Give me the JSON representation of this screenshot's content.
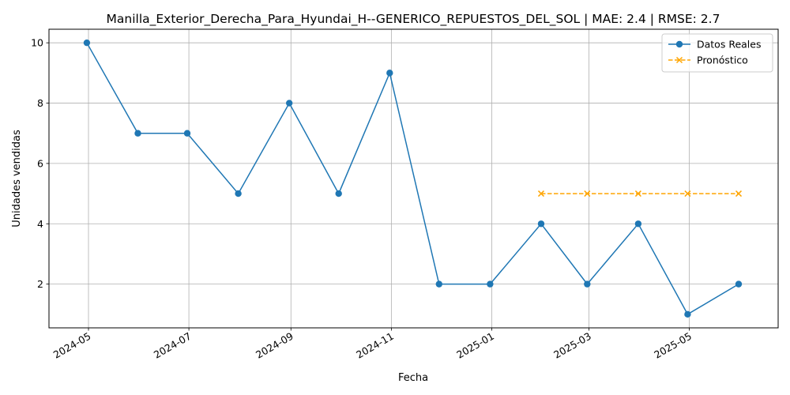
{
  "chart_data": {
    "type": "line",
    "title": "Manilla_Exterior_Derecha_Para_Hyundai_H--GENERICO_REPUESTOS_DEL_SOL | MAE: 2.4 | RMSE: 2.7",
    "xlabel": "Fecha",
    "ylabel": "Unidades vendidas",
    "xlim": [
      "2024-04-07",
      "2025-06-24"
    ],
    "ylim": [
      0.55,
      10.45
    ],
    "x_ticks": [
      "2024-05",
      "2024-07",
      "2024-09",
      "2024-11",
      "2025-01",
      "2025-03",
      "2025-05"
    ],
    "y_ticks": [
      2,
      4,
      6,
      8,
      10
    ],
    "grid": true,
    "legend_position": "top-right",
    "series": [
      {
        "name": "Datos Reales",
        "color": "#1f77b4",
        "line_style": "solid",
        "marker": "circle",
        "x": [
          "2024-04-30",
          "2024-05-31",
          "2024-06-30",
          "2024-07-31",
          "2024-08-31",
          "2024-09-30",
          "2024-10-31",
          "2024-11-30",
          "2024-12-31",
          "2025-01-31",
          "2025-02-28",
          "2025-03-31",
          "2025-04-30",
          "2025-05-31"
        ],
        "values": [
          10,
          7,
          7,
          5,
          8,
          5,
          9,
          2,
          2,
          4,
          2,
          4,
          1,
          2
        ]
      },
      {
        "name": "Pronóstico",
        "color": "#ffa500",
        "line_style": "dashed",
        "marker": "x",
        "x": [
          "2025-01-31",
          "2025-02-28",
          "2025-03-31",
          "2025-04-30",
          "2025-05-31"
        ],
        "values": [
          5,
          5,
          5,
          5,
          5
        ]
      }
    ]
  }
}
